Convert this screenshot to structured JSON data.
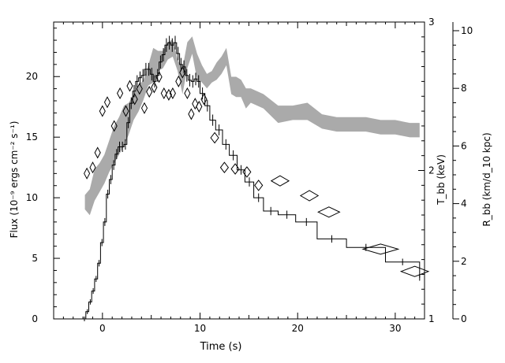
{
  "chart_data": {
    "type": "line",
    "xlabel": "Time (s)",
    "ylabel_left": "Flux (10⁻⁹ ergs cm⁻² s⁻¹)",
    "ylabel_right_inner": "T_bb (keV)",
    "ylabel_right_outer": "R_bb (km/d_10 kpc)",
    "xlim": [
      -5,
      33
    ],
    "ylim_left": [
      0,
      24.5
    ],
    "ylim_tbb": [
      1,
      3
    ],
    "ylim_rbb": [
      0,
      10.3
    ],
    "x_ticks": [
      0,
      10,
      20,
      30
    ],
    "x_tick_labels": [
      "0",
      "10",
      "20",
      "30"
    ],
    "y_ticks_left": [
      0,
      5,
      10,
      15,
      20
    ],
    "y_tick_labels_left": [
      "0",
      "5",
      "10",
      "15",
      "20"
    ],
    "tbb_ticks": [
      1,
      2,
      3
    ],
    "tbb_tick_labels": [
      "1",
      "2",
      "3"
    ],
    "rbb_ticks": [
      0,
      2,
      4,
      6,
      8,
      10
    ],
    "rbb_tick_labels": [
      "0",
      "2",
      "4",
      "6",
      "8",
      "10"
    ],
    "grid": false,
    "series": [
      {
        "kind": "flux-step",
        "color": "#000000",
        "points": [
          [
            -2.0,
            0.0
          ],
          [
            -1.7,
            0.6
          ],
          [
            -1.4,
            1.4
          ],
          [
            -1.1,
            2.3
          ],
          [
            -0.8,
            3.3
          ],
          [
            -0.5,
            4.6
          ],
          [
            -0.2,
            6.3
          ],
          [
            0.1,
            8.0
          ],
          [
            0.4,
            10.3
          ],
          [
            0.7,
            11.5
          ],
          [
            1.0,
            12.7
          ],
          [
            1.3,
            13.6
          ],
          [
            1.6,
            14.2
          ],
          [
            1.9,
            14.2
          ],
          [
            2.2,
            14.4
          ],
          [
            2.5,
            16.2
          ],
          [
            2.8,
            17.8
          ],
          [
            3.1,
            18.8
          ],
          [
            3.4,
            19.6
          ],
          [
            3.7,
            19.9
          ],
          [
            4.0,
            20.1
          ],
          [
            4.3,
            20.6
          ],
          [
            4.6,
            20.6
          ],
          [
            4.9,
            20.2
          ],
          [
            5.2,
            19.6
          ],
          [
            5.5,
            20.1
          ],
          [
            5.8,
            21.2
          ],
          [
            6.1,
            21.8
          ],
          [
            6.4,
            22.6
          ],
          [
            6.7,
            22.8
          ],
          [
            7.0,
            22.6
          ],
          [
            7.3,
            22.8
          ],
          [
            7.6,
            21.9
          ],
          [
            7.9,
            21.0
          ],
          [
            8.2,
            20.8
          ],
          [
            8.5,
            20.1
          ],
          [
            8.8,
            19.7
          ],
          [
            9.1,
            19.6
          ],
          [
            9.4,
            19.8
          ],
          [
            9.7,
            19.6
          ],
          [
            10.0,
            18.6
          ],
          [
            10.5,
            17.6
          ],
          [
            11.0,
            16.4
          ],
          [
            11.6,
            15.6
          ],
          [
            12.3,
            14.4
          ],
          [
            13.0,
            13.5
          ],
          [
            13.8,
            12.3
          ],
          [
            14.6,
            11.3
          ],
          [
            15.5,
            10.0
          ],
          [
            16.5,
            8.9
          ],
          [
            18.0,
            8.6
          ],
          [
            19.8,
            8.0
          ],
          [
            22.0,
            6.6
          ],
          [
            25.0,
            5.9
          ],
          [
            29.0,
            4.7
          ],
          [
            32.5,
            3.4
          ]
        ]
      },
      {
        "kind": "rbb-band",
        "color": "#aaaaaa",
        "x": [
          -1.8,
          -1.3,
          -0.8,
          -0.3,
          0.2,
          0.7,
          1.2,
          1.7,
          2.2,
          2.7,
          3.2,
          3.7,
          4.2,
          4.7,
          5.2,
          5.7,
          6.2,
          6.7,
          7.2,
          7.7,
          8.2,
          8.7,
          9.2,
          9.7,
          10.2,
          10.7,
          11.2,
          11.7,
          12.2,
          12.7,
          13.2,
          13.7,
          14.2,
          14.7,
          15.2,
          16.5,
          18.0,
          19.5,
          21.0,
          22.5,
          24.0,
          25.5,
          27.0,
          28.5,
          30.0,
          31.5,
          32.5
        ],
        "lo": [
          3.8,
          3.6,
          4.1,
          4.4,
          4.7,
          5.1,
          5.4,
          5.7,
          6.0,
          6.4,
          6.9,
          7.2,
          7.6,
          8.1,
          8.2,
          8.6,
          8.7,
          9.0,
          9.1,
          8.6,
          7.8,
          8.7,
          9.2,
          8.3,
          8.2,
          8.0,
          8.2,
          8.3,
          8.5,
          8.8,
          7.8,
          7.7,
          7.7,
          7.3,
          7.5,
          7.3,
          6.8,
          6.9,
          6.9,
          6.6,
          6.5,
          6.5,
          6.5,
          6.4,
          6.4,
          6.3,
          6.3
        ],
        "hi": [
          4.3,
          4.5,
          5.2,
          5.4,
          5.7,
          6.2,
          6.7,
          7.0,
          7.4,
          7.5,
          7.8,
          8.1,
          8.3,
          8.8,
          9.4,
          9.3,
          9.3,
          9.6,
          9.7,
          9.0,
          8.7,
          9.6,
          9.8,
          9.2,
          8.8,
          8.5,
          8.6,
          8.9,
          9.1,
          9.4,
          8.4,
          8.4,
          8.3,
          8.0,
          8.0,
          7.8,
          7.4,
          7.4,
          7.5,
          7.1,
          7.0,
          7.0,
          7.0,
          6.9,
          6.9,
          6.8,
          6.8
        ]
      },
      {
        "kind": "tbb-diamonds",
        "color": "#000000",
        "points": [
          {
            "t": -1.6,
            "T": 1.98,
            "dt": 0.25
          },
          {
            "t": -1.0,
            "T": 2.02,
            "dt": 0.25
          },
          {
            "t": -0.5,
            "T": 2.12,
            "dt": 0.25
          },
          {
            "t": 0.0,
            "T": 2.4,
            "dt": 0.2
          },
          {
            "t": 0.5,
            "T": 2.46,
            "dt": 0.2
          },
          {
            "t": 1.2,
            "T": 2.3,
            "dt": 0.2
          },
          {
            "t": 1.8,
            "T": 2.52,
            "dt": 0.2
          },
          {
            "t": 2.4,
            "T": 2.4,
            "dt": 0.2
          },
          {
            "t": 2.8,
            "T": 2.57,
            "dt": 0.2
          },
          {
            "t": 3.3,
            "T": 2.48,
            "dt": 0.2
          },
          {
            "t": 3.8,
            "T": 2.55,
            "dt": 0.2
          },
          {
            "t": 4.3,
            "T": 2.42,
            "dt": 0.2
          },
          {
            "t": 4.8,
            "T": 2.53,
            "dt": 0.2
          },
          {
            "t": 5.3,
            "T": 2.56,
            "dt": 0.2
          },
          {
            "t": 5.8,
            "T": 2.63,
            "dt": 0.2
          },
          {
            "t": 6.3,
            "T": 2.52,
            "dt": 0.2
          },
          {
            "t": 6.8,
            "T": 2.51,
            "dt": 0.2
          },
          {
            "t": 7.2,
            "T": 2.52,
            "dt": 0.2
          },
          {
            "t": 7.8,
            "T": 2.6,
            "dt": 0.2
          },
          {
            "t": 8.2,
            "T": 2.66,
            "dt": 0.2
          },
          {
            "t": 8.7,
            "T": 2.52,
            "dt": 0.2
          },
          {
            "t": 9.1,
            "T": 2.38,
            "dt": 0.2
          },
          {
            "t": 9.5,
            "T": 2.45,
            "dt": 0.2
          },
          {
            "t": 9.9,
            "T": 2.43,
            "dt": 0.2
          },
          {
            "t": 10.4,
            "T": 2.48,
            "dt": 0.2
          },
          {
            "t": 11.5,
            "T": 2.22,
            "dt": 0.8
          },
          {
            "t": 12.5,
            "T": 2.02,
            "dt": 0.8
          },
          {
            "t": 13.6,
            "T": 2.01,
            "dt": 0.8
          },
          {
            "t": 14.8,
            "T": 1.99,
            "dt": 0.8
          },
          {
            "t": 16.0,
            "T": 1.9,
            "dt": 0.8
          },
          {
            "t": 18.2,
            "T": 1.93,
            "dt": 1.8
          },
          {
            "t": 21.2,
            "T": 1.83,
            "dt": 1.8
          },
          {
            "t": 23.2,
            "T": 1.72,
            "dt": 2.2
          },
          {
            "t": 28.5,
            "T": 1.47,
            "dt": 3.6
          },
          {
            "t": 32.0,
            "T": 1.32,
            "dt": 2.8
          }
        ]
      }
    ]
  }
}
